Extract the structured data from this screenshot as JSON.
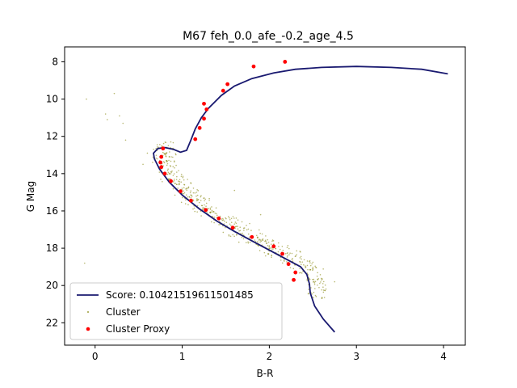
{
  "chart_data": {
    "type": "scatter",
    "title": "M67 feh_0.0_afe_-0.2_age_4.5",
    "xlabel": "B-R",
    "ylabel": "G Mag",
    "xlim": [
      -0.35,
      4.25
    ],
    "ylim": [
      23.2,
      7.2
    ],
    "y_inverted": true,
    "xticks": [
      0,
      1,
      2,
      3,
      4
    ],
    "yticks": [
      8,
      10,
      12,
      14,
      16,
      18,
      20,
      22
    ],
    "grid": false,
    "legend_position": "lower-left",
    "series": [
      {
        "name": "Score: 0.10421519611501485",
        "kind": "line",
        "color": "#191970",
        "points": [
          [
            2.75,
            22.5
          ],
          [
            2.62,
            21.8
          ],
          [
            2.52,
            21.1
          ],
          [
            2.47,
            20.4
          ],
          [
            2.46,
            19.9
          ],
          [
            2.43,
            19.4
          ],
          [
            2.36,
            19.0
          ],
          [
            2.2,
            18.6
          ],
          [
            2.0,
            18.1
          ],
          [
            1.8,
            17.6
          ],
          [
            1.6,
            17.1
          ],
          [
            1.4,
            16.55
          ],
          [
            1.2,
            15.9
          ],
          [
            1.0,
            15.15
          ],
          [
            0.85,
            14.45
          ],
          [
            0.74,
            13.75
          ],
          [
            0.68,
            13.2
          ],
          [
            0.67,
            12.9
          ],
          [
            0.72,
            12.65
          ],
          [
            0.8,
            12.6
          ],
          [
            0.9,
            12.7
          ],
          [
            0.98,
            12.85
          ],
          [
            1.05,
            12.75
          ],
          [
            1.1,
            12.2
          ],
          [
            1.15,
            11.6
          ],
          [
            1.22,
            11.0
          ],
          [
            1.3,
            10.5
          ],
          [
            1.45,
            9.8
          ],
          [
            1.6,
            9.3
          ],
          [
            1.8,
            8.9
          ],
          [
            2.05,
            8.6
          ],
          [
            2.3,
            8.4
          ],
          [
            2.6,
            8.3
          ],
          [
            3.0,
            8.25
          ],
          [
            3.4,
            8.3
          ],
          [
            3.75,
            8.4
          ],
          [
            4.05,
            8.65
          ]
        ]
      },
      {
        "name": "Cluster",
        "kind": "scatter",
        "color": "#808000"
      },
      {
        "name": "Cluster Proxy",
        "kind": "scatter",
        "color": "#ff0000",
        "points": [
          [
            2.18,
            8.0
          ],
          [
            1.82,
            8.25
          ],
          [
            1.52,
            9.2
          ],
          [
            1.47,
            9.55
          ],
          [
            1.25,
            10.25
          ],
          [
            1.28,
            10.55
          ],
          [
            1.25,
            11.05
          ],
          [
            1.2,
            11.55
          ],
          [
            1.15,
            12.15
          ],
          [
            0.78,
            12.65
          ],
          [
            0.76,
            13.1
          ],
          [
            0.75,
            13.4
          ],
          [
            0.76,
            13.65
          ],
          [
            0.8,
            14.0
          ],
          [
            0.87,
            14.4
          ],
          [
            0.98,
            14.95
          ],
          [
            1.1,
            15.45
          ],
          [
            1.27,
            15.95
          ],
          [
            1.42,
            16.4
          ],
          [
            1.58,
            16.9
          ],
          [
            1.8,
            17.4
          ],
          [
            2.05,
            17.9
          ],
          [
            2.15,
            18.3
          ],
          [
            2.22,
            18.85
          ],
          [
            2.3,
            19.3
          ],
          [
            2.28,
            19.7
          ]
        ]
      }
    ]
  }
}
